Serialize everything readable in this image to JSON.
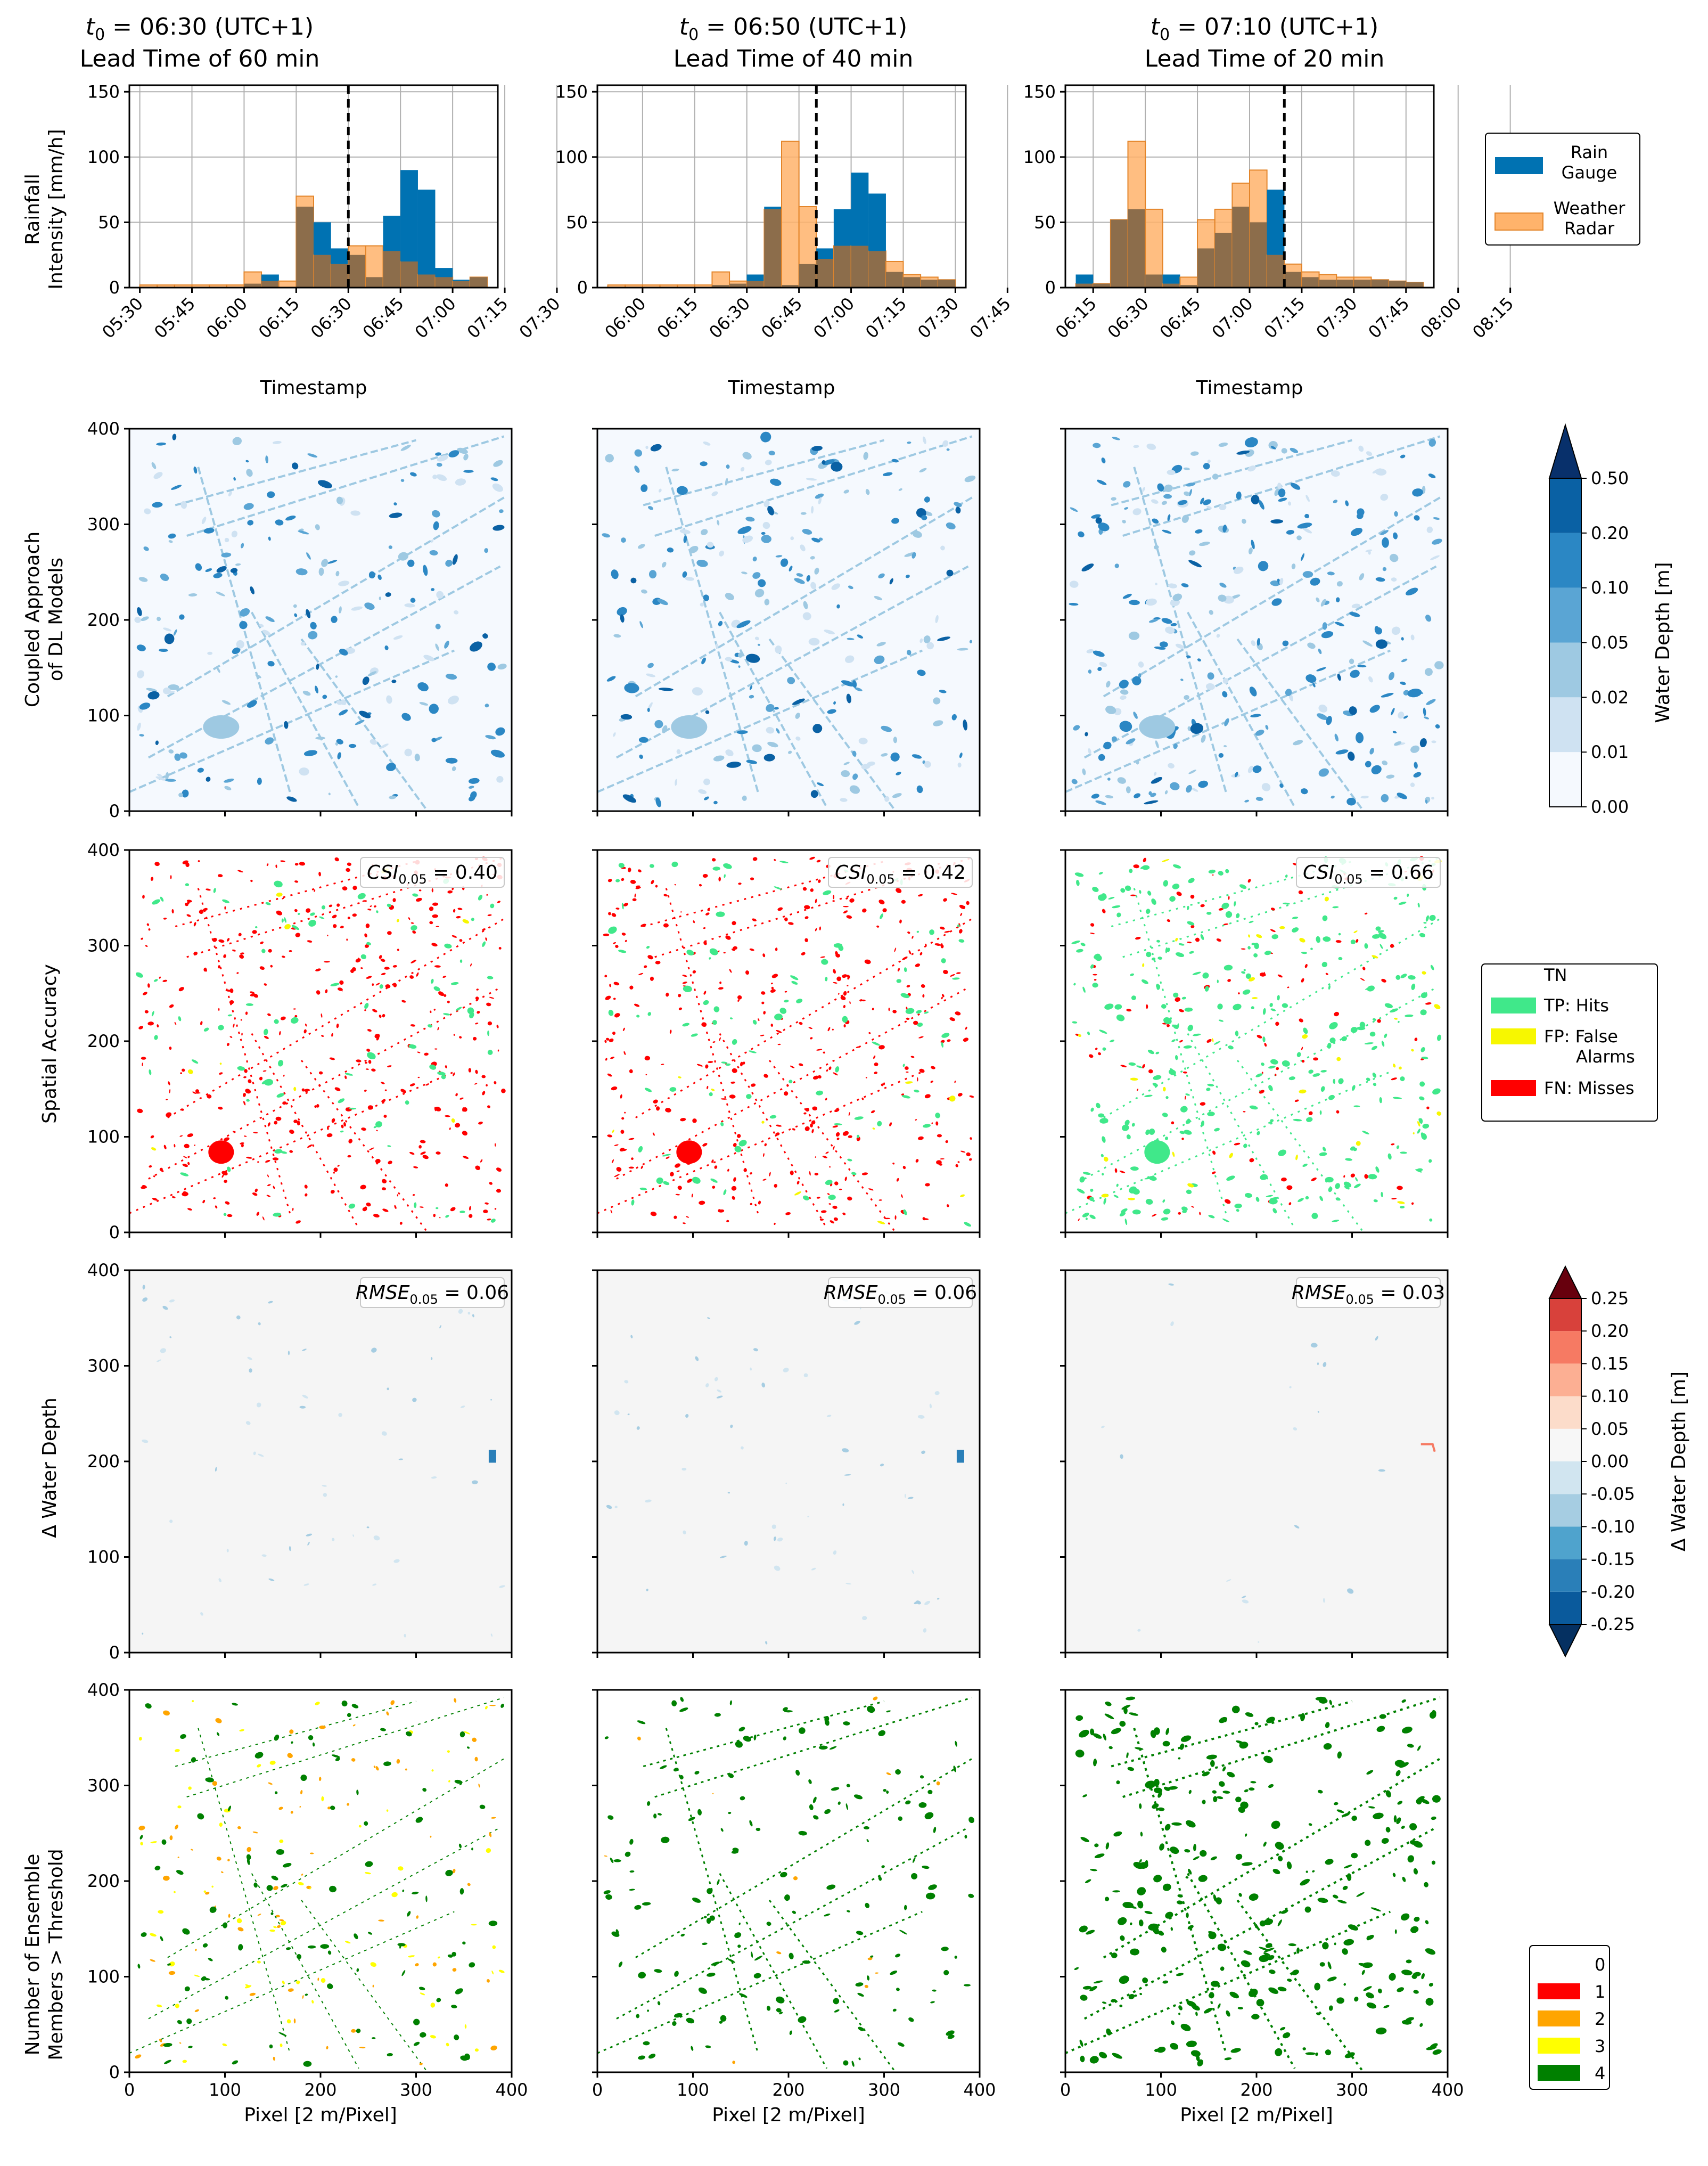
{
  "columns": [
    {
      "t0_label": "t",
      "t0_sub": "0",
      "t0_rest": " = 06:30 (UTC+1)",
      "lead": "Lead Time of 60 min",
      "csi_value": "0.40",
      "rmse_value": "0.06",
      "cutoff_index": 8
    },
    {
      "t0_label": "t",
      "t0_sub": "0",
      "t0_rest": " = 06:50 (UTC+1)",
      "lead": "Lead Time of 40 min",
      "csi_value": "0.42",
      "rmse_value": "0.06",
      "cutoff_index": 11
    },
    {
      "t0_label": "t",
      "t0_sub": "0",
      "t0_rest": " = 07:10 (UTC+1)",
      "lead": "Lead Time of 20 min",
      "csi_value": "0.66",
      "rmse_value": "0.03",
      "cutoff_index": 14
    }
  ],
  "row_labels": {
    "rainfall": [
      "Rainfall",
      "Intensity [mm/h]"
    ],
    "coupled": [
      "Coupled Approach",
      "of DL Models"
    ],
    "spatial": [
      "Spatial Accuracy"
    ],
    "delta": [
      "Δ Water Depth"
    ],
    "ensemble": [
      "Number of Ensemble",
      "Members > Threshold"
    ]
  },
  "annotations": {
    "csi_main": "CSI",
    "csi_sub": "0.05",
    "rmse_main": "RMSE",
    "rmse_sub": "0.05"
  },
  "colors": {
    "gauge": "#0072b2",
    "radar": "#ffb36b",
    "overlap": "#8c6d4b",
    "water": [
      "#f5f9fe",
      "#cfe2f2",
      "#9ec9e2",
      "#5aa5d4",
      "#2b87c4",
      "#0a61a4",
      "#08306b"
    ],
    "tp": "#40e88a",
    "fp": "#f7f700",
    "fn": "#ff0000",
    "delta_pos": [
      "#fcdcca",
      "#fcaf93",
      "#f67a63",
      "#d8413b",
      "#a50f15",
      "#67000d"
    ],
    "delta_neg": [
      "#d1e5f0",
      "#a6cde2",
      "#4fa3cd",
      "#2a7fb8",
      "#0a5a9c",
      "#053061"
    ],
    "ens": [
      "#ffffff",
      "#ff0000",
      "#ffa500",
      "#ffff00",
      "#008000"
    ]
  },
  "legends": {
    "rain": [
      {
        "label": [
          "Rain",
          "Gauge"
        ],
        "color": "#0072b2"
      },
      {
        "label": [
          "Weather",
          "Radar"
        ],
        "color": "#ffb36b"
      }
    ],
    "water_cbar": {
      "label": "Water Depth [m]",
      "ticks": [
        "0.00",
        "0.01",
        "0.02",
        "0.05",
        "0.10",
        "0.20",
        "0.50"
      ]
    },
    "spatial": [
      {
        "label": [
          "TN"
        ],
        "color": "#ffffff"
      },
      {
        "label": [
          "TP: Hits"
        ],
        "color": "#40e88a"
      },
      {
        "label": [
          "FP: False",
          "Alarms"
        ],
        "color": "#f7f700"
      },
      {
        "label": [
          "FN: Misses"
        ],
        "color": "#ff0000"
      }
    ],
    "delta_cbar": {
      "label": "Δ Water Depth [m]",
      "ticks": [
        "-0.25",
        "-0.20",
        "-0.15",
        "-0.10",
        "-0.05",
        "0.00",
        "0.05",
        "0.10",
        "0.15",
        "0.20",
        "0.25"
      ]
    },
    "ensemble": [
      {
        "label": "0",
        "color": "#ffffff"
      },
      {
        "label": "1",
        "color": "#ff0000"
      },
      {
        "label": "2",
        "color": "#ffa500"
      },
      {
        "label": "3",
        "color": "#ffff00"
      },
      {
        "label": "4",
        "color": "#008000"
      }
    ]
  },
  "chart_data": [
    {
      "type": "bar",
      "title": "t0 = 06:30 (UTC+1) Lead Time of 60 min",
      "xlabel": "Timestamp",
      "ylabel": "Rainfall Intensity [mm/h]",
      "ylim": [
        0,
        155
      ],
      "yticks": [
        0,
        50,
        100,
        150
      ],
      "xticks": [
        "05:30",
        "05:45",
        "06:00",
        "06:15",
        "06:30",
        "06:45",
        "07:00",
        "07:15",
        "07:30"
      ],
      "start_minute": 330,
      "bin_minutes": 5,
      "series": [
        {
          "name": "Rain Gauge",
          "values": [
            0,
            0,
            0,
            0,
            0,
            0,
            3,
            10,
            0,
            62,
            50,
            30,
            25,
            8,
            55,
            90,
            75,
            15,
            6,
            8
          ]
        },
        {
          "name": "Weather Radar",
          "values": [
            2,
            2,
            2,
            2,
            2,
            2,
            12,
            5,
            5,
            70,
            25,
            18,
            32,
            32,
            28,
            20,
            10,
            8,
            5,
            8
          ]
        }
      ],
      "vline": "06:30"
    },
    {
      "type": "bar",
      "title": "t0 = 06:50 (UTC+1) Lead Time of 40 min",
      "xlabel": "Timestamp",
      "ylabel": "Rainfall Intensity [mm/h]",
      "ylim": [
        0,
        155
      ],
      "yticks": [
        0,
        50,
        100,
        150
      ],
      "xticks": [
        "06:00",
        "06:15",
        "06:30",
        "06:45",
        "07:00",
        "07:15",
        "07:30",
        "07:45"
      ],
      "start_minute": 350,
      "bin_minutes": 5,
      "series": [
        {
          "name": "Rain Gauge",
          "values": [
            0,
            0,
            0,
            0,
            0,
            0,
            2,
            3,
            10,
            62,
            2,
            18,
            30,
            60,
            88,
            72,
            12,
            8,
            6,
            6
          ]
        },
        {
          "name": "Weather Radar",
          "values": [
            2,
            2,
            2,
            2,
            2,
            2,
            12,
            5,
            5,
            60,
            112,
            62,
            22,
            32,
            32,
            28,
            20,
            10,
            8,
            6
          ]
        }
      ],
      "vline": "06:50"
    },
    {
      "type": "bar",
      "title": "t0 = 07:10 (UTC+1) Lead Time of 20 min",
      "xlabel": "Timestamp",
      "ylabel": "Rainfall Intensity [mm/h]",
      "ylim": [
        0,
        155
      ],
      "yticks": [
        0,
        50,
        100,
        150
      ],
      "xticks": [
        "06:15",
        "06:30",
        "06:45",
        "07:00",
        "07:15",
        "07:30",
        "07:45",
        "08:00",
        "08:15"
      ],
      "start_minute": 370,
      "bin_minutes": 5,
      "series": [
        {
          "name": "Rain Gauge",
          "values": [
            10,
            3,
            52,
            60,
            10,
            10,
            2,
            30,
            42,
            62,
            50,
            75,
            12,
            8,
            6,
            6,
            6,
            6,
            5,
            4
          ]
        },
        {
          "name": "Weather Radar",
          "values": [
            3,
            3,
            52,
            112,
            60,
            3,
            8,
            52,
            60,
            80,
            90,
            25,
            18,
            12,
            10,
            8,
            8,
            6,
            5,
            4
          ]
        }
      ],
      "vline": "07:10"
    },
    {
      "type": "heatmap",
      "description_rows": [
        "Coupled Approach of DL Models",
        "Spatial Accuracy",
        "Δ Water Depth",
        "Number of Ensemble Members > Threshold"
      ],
      "xlabel": "Pixel [2 m/Pixel]",
      "xlim": [
        0,
        400
      ],
      "ylim": [
        0,
        400
      ],
      "xticks": [
        0,
        100,
        200,
        300,
        400
      ],
      "yticks": [
        0,
        100,
        200,
        300,
        400
      ]
    }
  ]
}
